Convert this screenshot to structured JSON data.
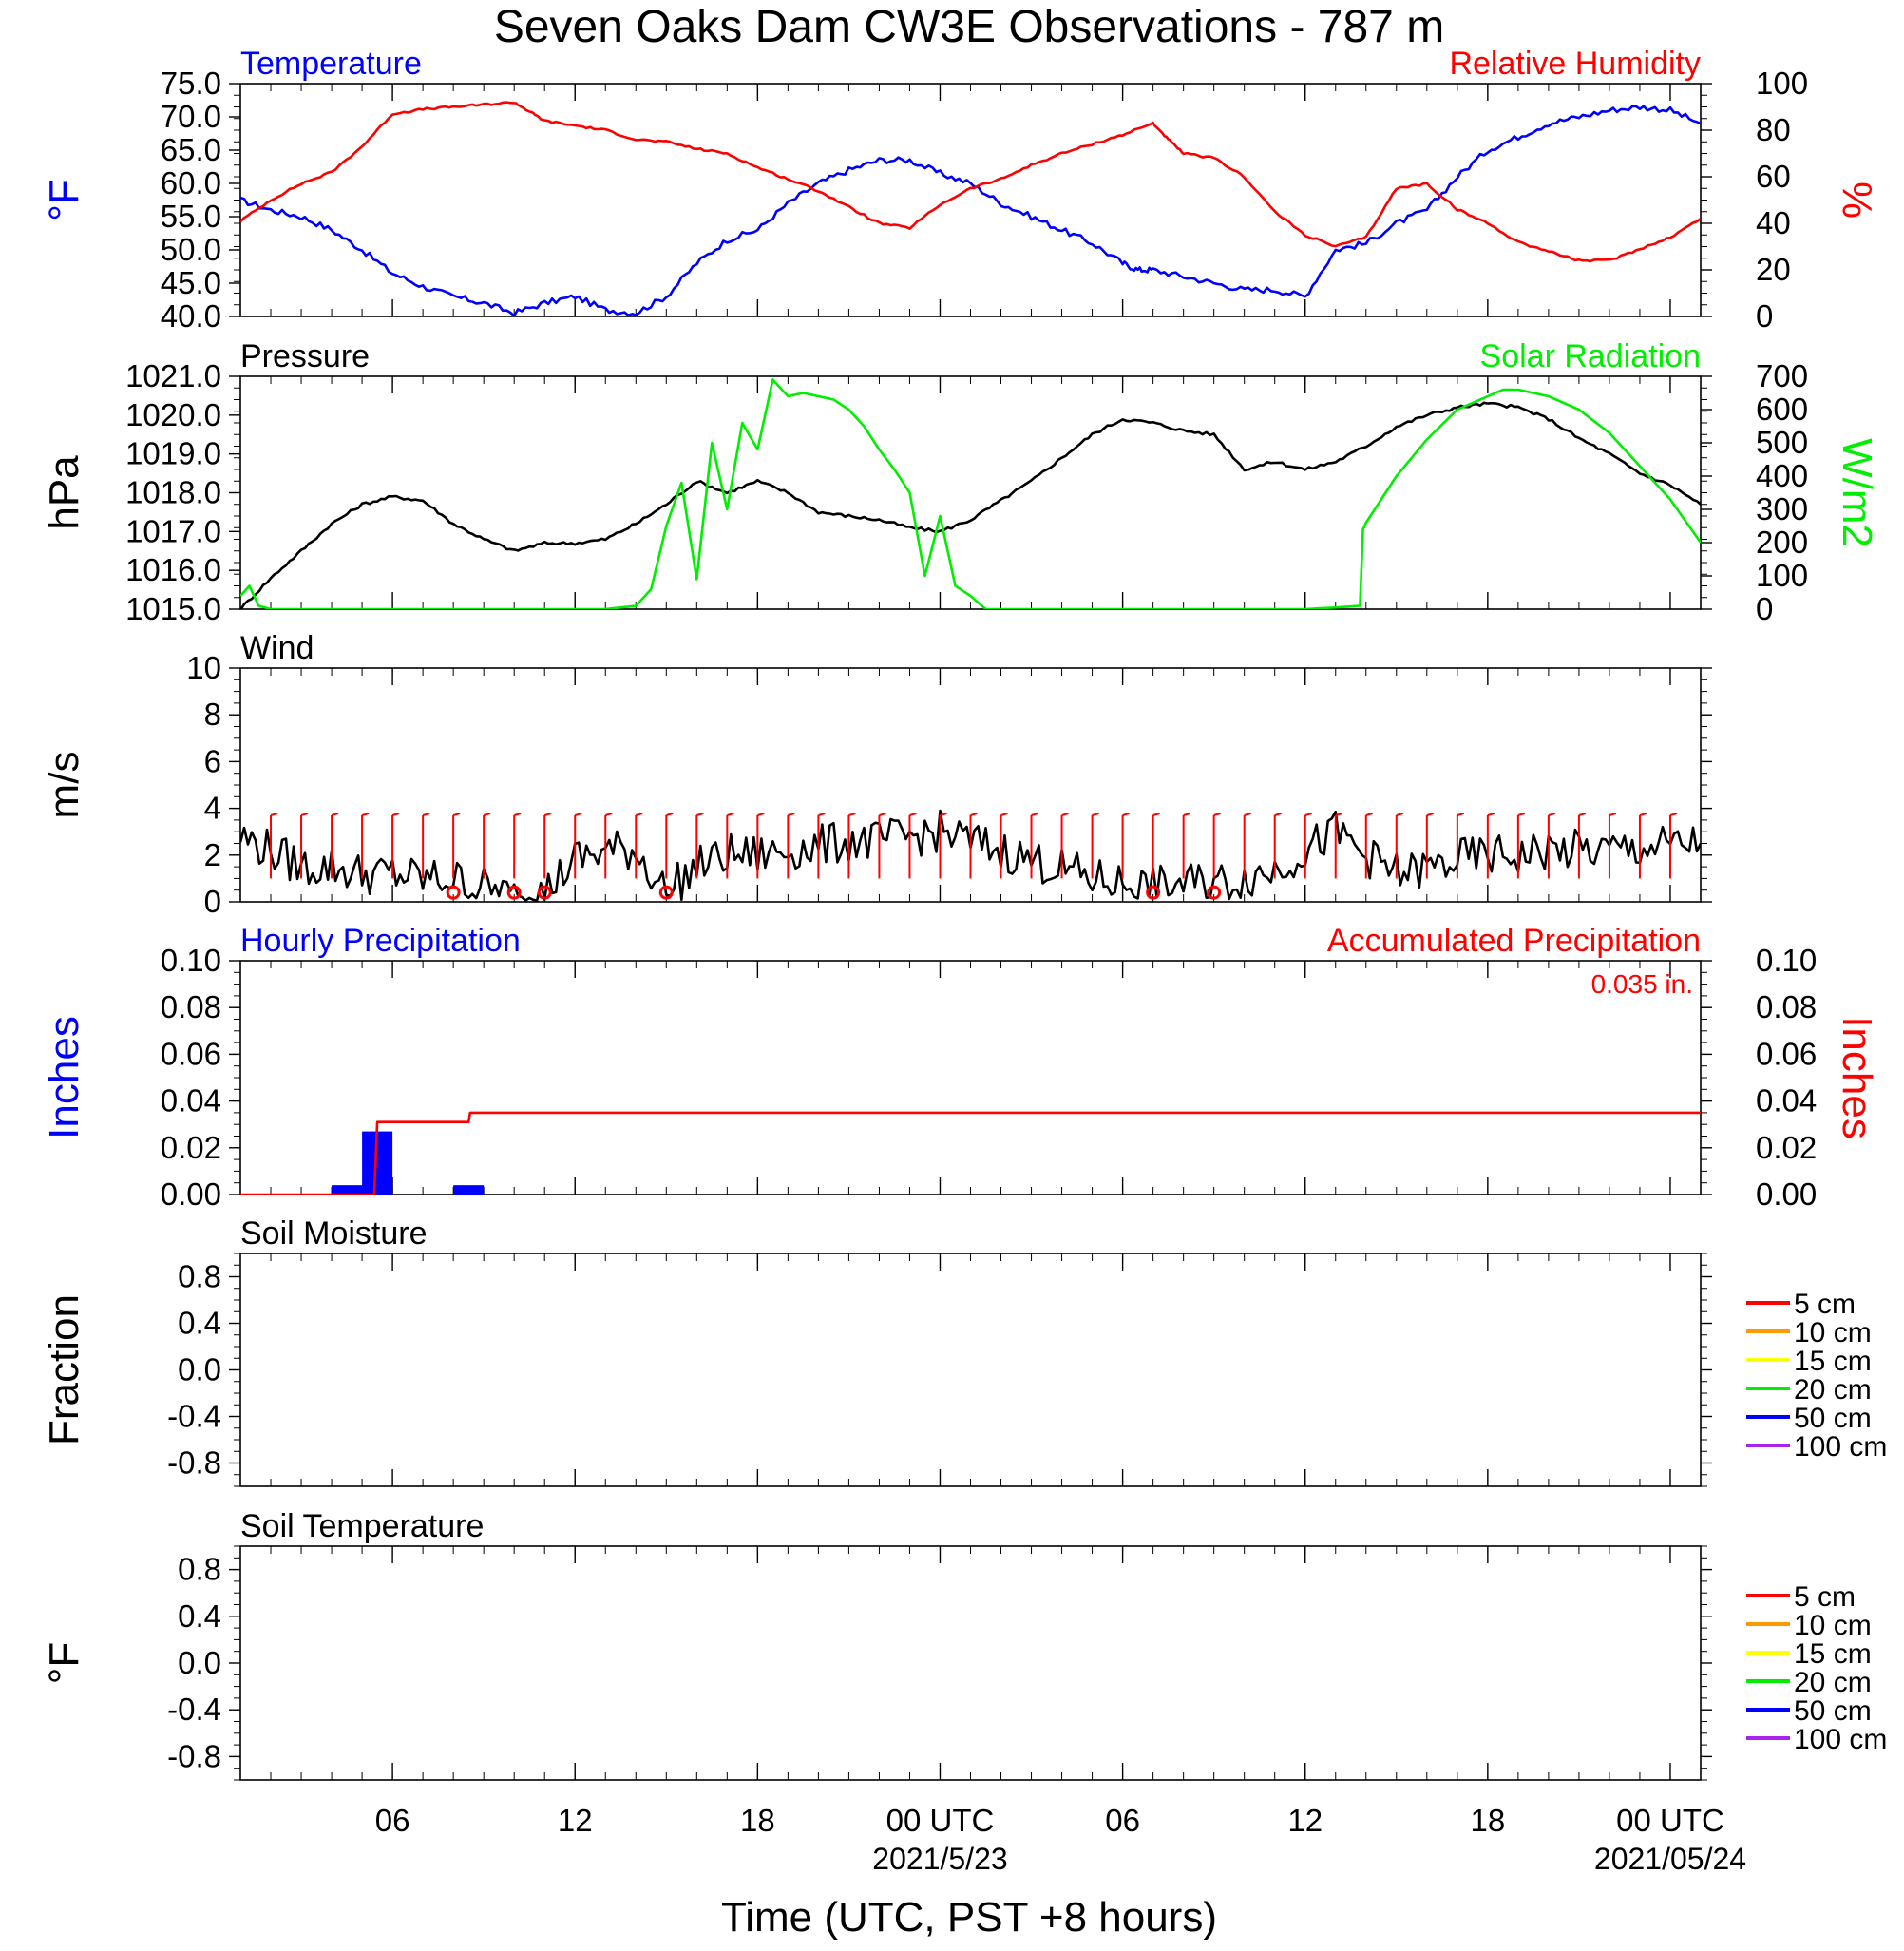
{
  "title": "Seven Oaks Dam CW3E Observations - 787 m",
  "xlabel": "Time (UTC, PST +8 hours)",
  "x_axis": {
    "ticks": [
      {
        "h": 6,
        "label": "06",
        "sub": ""
      },
      {
        "h": 12,
        "label": "12",
        "sub": ""
      },
      {
        "h": 18,
        "label": "18",
        "sub": ""
      },
      {
        "h": 24,
        "label": "00 UTC",
        "sub": "2021/5/23"
      },
      {
        "h": 30,
        "label": "06",
        "sub": ""
      },
      {
        "h": 36,
        "label": "12",
        "sub": ""
      },
      {
        "h": 42,
        "label": "18",
        "sub": ""
      },
      {
        "h": 48,
        "label": "00 UTC",
        "sub": "2021/05/24"
      }
    ],
    "range_hours_since_2021-05-22T00Z": [
      1,
      49
    ]
  },
  "colors": {
    "blue": "#0000ff",
    "red": "#ff0000",
    "green": "#00ee00",
    "black": "#000000"
  },
  "chart_data": [
    {
      "type": "line",
      "left_title": "Temperature",
      "right_title": "Relative Humidity",
      "ylabel_left": "°F",
      "ylabel_right": "%",
      "y_left": {
        "range": [
          40,
          75
        ],
        "ticks": [
          "40.0",
          "45.0",
          "50.0",
          "55.0",
          "60.0",
          "65.0",
          "70.0",
          "75.0"
        ]
      },
      "y_right": {
        "range": [
          0,
          100
        ],
        "ticks": [
          "0",
          "20",
          "40",
          "60",
          "80",
          "100"
        ]
      },
      "series": [
        {
          "name": "Temperature",
          "axis": "left",
          "color": "#0000ff",
          "x": [
            1,
            2,
            3,
            4,
            5,
            6,
            7,
            8,
            9,
            10,
            11,
            12,
            13,
            14,
            15,
            16,
            17,
            18,
            19,
            20,
            21,
            22,
            23,
            24,
            25,
            26,
            27,
            28,
            29,
            30,
            30.5,
            31,
            32,
            33,
            34,
            35,
            36,
            37,
            38,
            39,
            40,
            41,
            42,
            43,
            44,
            45,
            46,
            47,
            48,
            49
          ],
          "y": [
            57.5,
            56,
            55,
            53,
            50,
            46.5,
            44.5,
            43,
            42,
            40.5,
            42,
            43,
            41,
            40.5,
            43,
            48,
            51.5,
            53,
            57,
            60,
            62,
            63.5,
            63.5,
            61.5,
            60,
            57,
            55,
            53,
            51,
            48,
            47,
            47,
            46,
            45,
            44,
            44,
            43,
            50,
            51,
            54,
            56,
            61,
            65,
            67,
            69,
            70,
            71,
            71.5,
            71,
            69
          ]
        },
        {
          "name": "Relative Humidity",
          "axis": "right",
          "color": "#ff0000",
          "x": [
            1,
            2,
            3,
            4,
            5,
            6,
            7,
            8,
            9,
            10,
            10.5,
            11,
            12,
            13,
            14,
            15,
            16,
            17,
            18,
            19,
            20,
            21,
            22,
            23,
            24,
            25,
            26,
            27,
            28,
            29,
            30,
            31,
            31.5,
            32,
            33,
            34,
            35,
            36,
            37,
            38,
            39,
            40,
            41,
            42,
            43,
            44,
            45,
            46,
            47,
            48,
            49
          ],
          "y": [
            41,
            50,
            57,
            62,
            73,
            87,
            89,
            90,
            91,
            92,
            88,
            84,
            82,
            80,
            76,
            75,
            72,
            70,
            64,
            59,
            54,
            47,
            40,
            38,
            48,
            55,
            59,
            65,
            70,
            74,
            78,
            83,
            76,
            70,
            68,
            60,
            45,
            35,
            30,
            34,
            55,
            57,
            46,
            40,
            32,
            28,
            24,
            24,
            29,
            34,
            42
          ]
        }
      ]
    },
    {
      "type": "line",
      "left_title": "Pressure",
      "right_title": "Solar Radiation",
      "ylabel_left": "hPa",
      "ylabel_right": "W/m2",
      "y_left": {
        "range": [
          1015,
          1021
        ],
        "ticks": [
          "1015.0",
          "1016.0",
          "1017.0",
          "1018.0",
          "1019.0",
          "1020.0",
          "1021.0"
        ]
      },
      "y_right": {
        "range": [
          0,
          700
        ],
        "ticks": [
          "0",
          "100",
          "200",
          "300",
          "400",
          "500",
          "600",
          "700"
        ]
      },
      "series": [
        {
          "name": "Pressure",
          "axis": "left",
          "color": "#000000",
          "x": [
            1,
            2,
            3,
            4,
            5,
            6,
            7,
            8,
            9,
            10,
            11,
            12,
            13,
            14,
            15,
            16,
            17,
            18,
            19,
            20,
            21,
            22,
            23,
            24,
            25,
            26,
            27,
            28,
            29,
            30,
            31,
            32,
            33,
            34,
            35,
            36,
            37,
            38,
            39,
            40,
            41,
            42,
            43,
            44,
            45,
            46,
            47,
            48,
            49
          ],
          "y": [
            1015.0,
            1015.8,
            1016.5,
            1017.2,
            1017.7,
            1017.9,
            1017.8,
            1017.2,
            1016.8,
            1016.5,
            1016.7,
            1016.7,
            1016.8,
            1017.2,
            1017.7,
            1018.3,
            1018.0,
            1018.3,
            1018.0,
            1017.5,
            1017.4,
            1017.3,
            1017.1,
            1017.0,
            1017.3,
            1017.8,
            1018.3,
            1018.9,
            1019.5,
            1019.9,
            1019.8,
            1019.6,
            1019.5,
            1018.6,
            1018.8,
            1018.6,
            1018.8,
            1019.2,
            1019.7,
            1020.0,
            1020.2,
            1020.3,
            1020.2,
            1019.9,
            1019.4,
            1019.0,
            1018.5,
            1018.2,
            1017.7
          ]
        },
        {
          "name": "Solar Radiation",
          "axis": "right",
          "color": "#00ee00",
          "x": [
            1,
            1.3,
            1.6,
            2,
            3,
            4,
            5,
            6,
            7,
            8,
            9,
            10,
            11,
            12,
            13,
            14,
            14.5,
            15,
            15.5,
            16,
            16.5,
            17,
            17.5,
            18,
            18.5,
            19,
            19.5,
            20,
            20.5,
            21,
            21.5,
            22,
            22.5,
            23,
            23.5,
            24,
            24.5,
            25,
            25.5,
            26,
            26.5,
            27,
            28,
            29,
            30,
            31,
            32,
            33,
            34,
            35,
            36,
            37,
            37.8,
            37.9,
            38,
            39,
            40,
            41,
            42,
            42.5,
            43,
            44,
            45,
            46,
            47,
            48,
            49
          ],
          "y": [
            40,
            70,
            10,
            0,
            0,
            0,
            0,
            0,
            0,
            0,
            0,
            0,
            0,
            0,
            0,
            10,
            60,
            250,
            380,
            90,
            500,
            300,
            560,
            480,
            690,
            640,
            650,
            640,
            630,
            600,
            550,
            480,
            420,
            350,
            100,
            280,
            70,
            40,
            0,
            0,
            0,
            0,
            0,
            0,
            0,
            0,
            0,
            0,
            0,
            0,
            0,
            5,
            10,
            240,
            260,
            400,
            510,
            600,
            640,
            660,
            660,
            640,
            600,
            530,
            430,
            330,
            200
          ]
        }
      ]
    },
    {
      "type": "line",
      "left_title": "Wind",
      "ylabel_left": "m/s",
      "y_left": {
        "range": [
          0,
          10
        ],
        "ticks": [
          "0",
          "2",
          "4",
          "6",
          "8",
          "10"
        ]
      },
      "series": [
        {
          "name": "Wind",
          "axis": "left",
          "color": "#000000",
          "x": [
            1,
            2,
            3,
            4,
            5,
            6,
            7,
            8,
            9,
            10,
            11,
            12,
            13,
            14,
            15,
            16,
            17,
            18,
            19,
            20,
            21,
            22,
            23,
            24,
            25,
            26,
            27,
            28,
            29,
            30,
            31,
            32,
            33,
            34,
            35,
            36,
            37,
            38,
            39,
            40,
            41,
            42,
            43,
            44,
            45,
            46,
            47,
            48,
            49
          ],
          "y": [
            2.8,
            2.2,
            1.5,
            1.5,
            1.2,
            1.2,
            1.0,
            1.0,
            0.6,
            0.2,
            0.4,
            1.8,
            2.2,
            2.2,
            0.4,
            1.5,
            2.0,
            2.0,
            2.2,
            2.4,
            2.6,
            2.6,
            2.8,
            3.0,
            2.6,
            2.2,
            1.8,
            1.4,
            1.0,
            0.8,
            0.6,
            0.8,
            0.8,
            1.0,
            1.4,
            2.2,
            3.0,
            2.0,
            1.2,
            1.4,
            1.8,
            2.0,
            2.0,
            2.2,
            2.2,
            2.2,
            2.3,
            2.4,
            2.5
          ]
        }
      ],
      "calm_markers_hours": [
        8,
        10,
        11,
        15,
        31,
        33
      ]
    },
    {
      "type": "bar",
      "left_title": "Hourly Precipitation",
      "right_title": "Accumulated Precipitation",
      "ylabel_left": "Inches",
      "ylabel_right": "Inches",
      "y_left": {
        "range": [
          0,
          0.1
        ],
        "ticks": [
          "0.00",
          "0.02",
          "0.04",
          "0.06",
          "0.08",
          "0.10"
        ]
      },
      "y_right": {
        "range": [
          0,
          0.1
        ],
        "ticks": [
          "0.00",
          "0.02",
          "0.04",
          "0.06",
          "0.08",
          "0.10"
        ]
      },
      "annotation": "0.035 in.",
      "hourly_bars": {
        "x": [
          4.5,
          5.5,
          8.5
        ],
        "values": [
          0.004,
          0.027,
          0.004
        ]
      },
      "series": [
        {
          "name": "Accumulated Precipitation",
          "axis": "right",
          "color": "#ff0000",
          "x": [
            1,
            5.0,
            5.4,
            5.5,
            8.5,
            8.55,
            49
          ],
          "y": [
            0,
            0,
            0,
            0.031,
            0.031,
            0.035,
            0.035
          ]
        }
      ]
    },
    {
      "type": "line",
      "left_title": "Soil Moisture",
      "ylabel_left": "Fraction",
      "y_left": {
        "range": [
          -1,
          1
        ],
        "ticks": [
          "-0.8",
          "-0.4",
          "0.0",
          "0.4",
          "0.8"
        ]
      },
      "legend": [
        {
          "label": "5 cm",
          "color": "#ff0000"
        },
        {
          "label": "10 cm",
          "color": "#ff9900"
        },
        {
          "label": "15 cm",
          "color": "#ffff00"
        },
        {
          "label": "20 cm",
          "color": "#00ee00"
        },
        {
          "label": "50 cm",
          "color": "#0000ff"
        },
        {
          "label": "100 cm",
          "color": "#aa22ee"
        }
      ],
      "series": []
    },
    {
      "type": "line",
      "left_title": "Soil Temperature",
      "ylabel_left": "°F",
      "y_left": {
        "range": [
          -1,
          1
        ],
        "ticks": [
          "-0.8",
          "-0.4",
          "0.0",
          "0.4",
          "0.8"
        ]
      },
      "legend": [
        {
          "label": "5 cm",
          "color": "#ff0000"
        },
        {
          "label": "10 cm",
          "color": "#ff9900"
        },
        {
          "label": "15 cm",
          "color": "#ffff00"
        },
        {
          "label": "20 cm",
          "color": "#00ee00"
        },
        {
          "label": "50 cm",
          "color": "#0000ff"
        },
        {
          "label": "100 cm",
          "color": "#aa22ee"
        }
      ],
      "series": []
    }
  ]
}
